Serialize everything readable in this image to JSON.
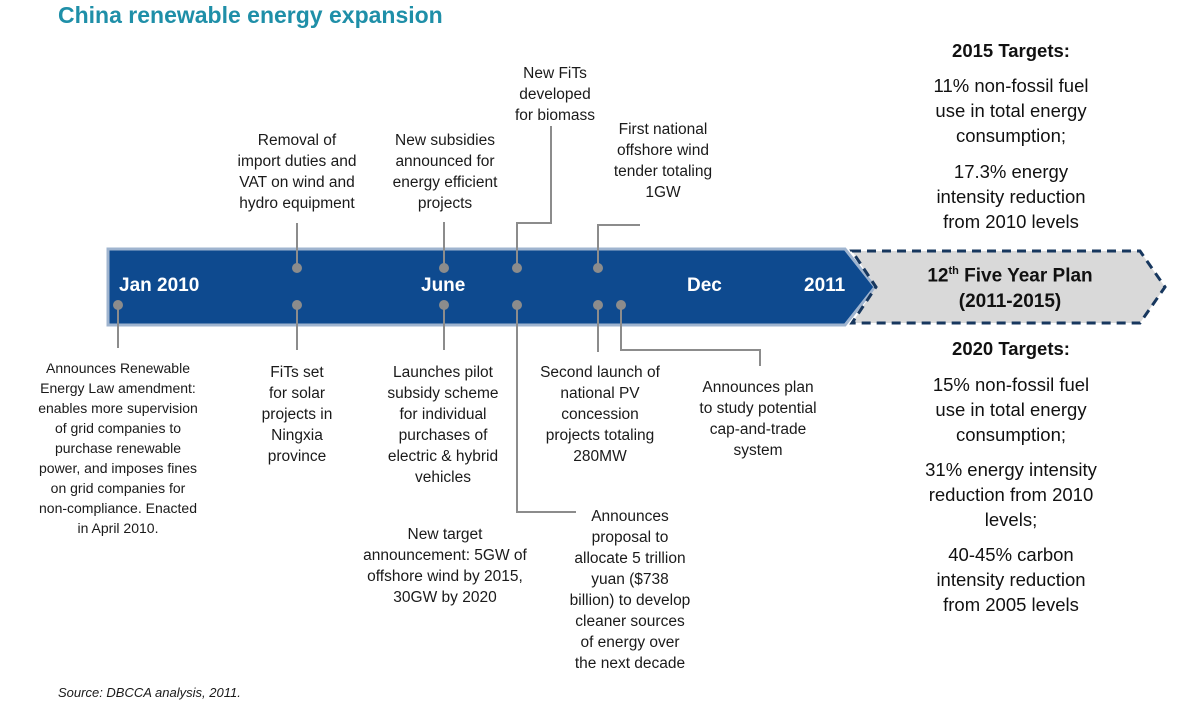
{
  "title": "China renewable energy expansion",
  "timeline": {
    "labels": {
      "start": "Jan 2010",
      "mid": "June",
      "dec": "Dec",
      "end": "2011"
    }
  },
  "plan": {
    "line1_main": "12",
    "line1_sup": "th",
    "line1_rest": " Five Year Plan",
    "line2": "(2011-2015)"
  },
  "events_above": [
    {
      "text": "Removal of\nimport duties and\nVAT on wind and\nhydro equipment"
    },
    {
      "text": "New subsidies\nannounced for\nenergy efficient\nprojects"
    },
    {
      "text": "New FiTs\ndeveloped\nfor biomass"
    },
    {
      "text": "First national\noffshore wind\ntender totaling\n1GW"
    }
  ],
  "events_below": [
    {
      "text": "Announces Renewable\nEnergy Law amendment:\nenables more supervision\nof grid companies to\npurchase renewable\npower, and imposes fines\non grid companies for\nnon-compliance. Enacted\nin April 2010."
    },
    {
      "text": "FiTs set\nfor solar\nprojects in\nNingxia\nprovince"
    },
    {
      "text": "Launches pilot\nsubsidy scheme\nfor individual\npurchases of\nelectric & hybrid\nvehicles"
    },
    {
      "text": "New target\nannouncement: 5GW of\noffshore wind by 2015,\n30GW by 2020"
    },
    {
      "text": "Second launch of\nnational PV\nconcession\nprojects totaling\n280MW"
    },
    {
      "text": "Announces\nproposal to\nallocate 5 trillion\nyuan ($738\nbillion) to develop\ncleaner sources\nof energy over\nthe next decade"
    },
    {
      "text": "Announces plan\nto study potential\ncap-and-trade\nsystem"
    }
  ],
  "targets_2015": {
    "heading": "2015 Targets:",
    "items": [
      "11% non-fossil fuel\nuse in total energy\nconsumption;",
      "17.3% energy\nintensity reduction\nfrom 2010 levels"
    ]
  },
  "targets_2020": {
    "heading": "2020 Targets:",
    "items": [
      "15% non-fossil fuel\nuse in total energy\nconsumption;",
      "31% energy intensity\nreduction from 2010\nlevels;",
      "40-45% carbon\nintensity reduction\nfrom 2005 levels"
    ]
  },
  "source": "Source: DBCCA analysis, 2011.",
  "colors": {
    "title": "#1f8fa8",
    "arrow": "#0e4a8f",
    "arrow_border": "#9fb4cf",
    "dot": "#8c8c8c",
    "plan_fill": "#d9d9d9",
    "plan_border": "#17375e"
  }
}
